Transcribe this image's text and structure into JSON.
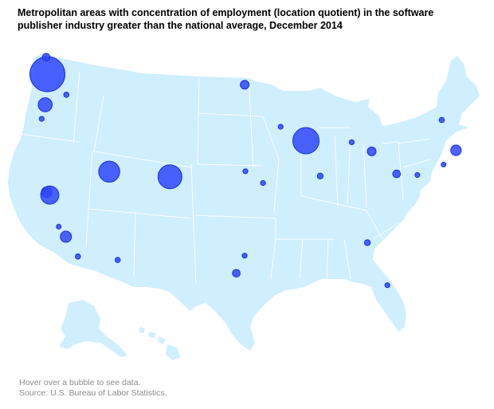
{
  "title": "Metropolitan areas with concentration of employment (location quotient) in the software publisher industry greater than the national average, December 2014",
  "footer": {
    "hint": "Hover over a bubble to see data.",
    "source": "Source: U.S. Bureau of Labor Statistics."
  },
  "colors": {
    "land": "#cfeefe",
    "bubble": "#2f47ff",
    "bubble_stroke": "#1a2fd8",
    "footer_text": "#8a8a8a"
  },
  "map": {
    "region": "United States (lower 48)",
    "bubbles": [
      {
        "id": "seattle",
        "lon": -122.3,
        "lat": 47.6,
        "relative_size": 1.0
      },
      {
        "id": "bellingham",
        "lon": -122.5,
        "lat": 48.75,
        "relative_size": 0.22
      },
      {
        "id": "portland",
        "lon": -122.68,
        "lat": 45.52,
        "relative_size": 0.4
      },
      {
        "id": "kennewick",
        "lon": -119.1,
        "lat": 46.2,
        "relative_size": 0.15
      },
      {
        "id": "corvallis",
        "lon": -123.26,
        "lat": 44.56,
        "relative_size": 0.14
      },
      {
        "id": "san-francisco",
        "lon": -122.42,
        "lat": 37.77,
        "relative_size": 0.3
      },
      {
        "id": "san-jose",
        "lon": -121.89,
        "lat": 37.34,
        "relative_size": 0.52
      },
      {
        "id": "santa-maria",
        "lon": -120.4,
        "lat": 34.95,
        "relative_size": 0.13
      },
      {
        "id": "oxnard",
        "lon": -119.18,
        "lat": 34.2,
        "relative_size": 0.32
      },
      {
        "id": "san-diego",
        "lon": -117.16,
        "lat": 32.72,
        "relative_size": 0.15
      },
      {
        "id": "tucson",
        "lon": -110.97,
        "lat": 32.22,
        "relative_size": 0.15
      },
      {
        "id": "salt-lake-city",
        "lon": -111.89,
        "lat": 40.76,
        "relative_size": 0.6
      },
      {
        "id": "boulder",
        "lon": -105.27,
        "lat": 40.02,
        "relative_size": 0.68
      },
      {
        "id": "fargo",
        "lon": -96.79,
        "lat": 46.88,
        "relative_size": 0.25
      },
      {
        "id": "rochester-mn",
        "lon": -92.46,
        "lat": 44.02,
        "relative_size": 0.14
      },
      {
        "id": "lincoln",
        "lon": -96.7,
        "lat": 40.81,
        "relative_size": 0.14
      },
      {
        "id": "kansas-city",
        "lon": -94.58,
        "lat": 39.1,
        "relative_size": 0.14
      },
      {
        "id": "austin",
        "lon": -97.74,
        "lat": 30.27,
        "relative_size": 0.22
      },
      {
        "id": "dallas",
        "lon": -96.8,
        "lat": 32.78,
        "relative_size": 0.14
      },
      {
        "id": "madison",
        "lon": -89.4,
        "lat": 43.07,
        "relative_size": 0.75
      },
      {
        "id": "champaign",
        "lon": -88.24,
        "lat": 40.12,
        "relative_size": 0.17
      },
      {
        "id": "grand-rapids",
        "lon": -85.67,
        "lat": 42.96,
        "relative_size": 0.14
      },
      {
        "id": "ann-arbor",
        "lon": -83.74,
        "lat": 42.28,
        "relative_size": 0.25
      },
      {
        "id": "pittsburgh",
        "lon": -79.99,
        "lat": 40.44,
        "relative_size": 0.22
      },
      {
        "id": "harrisburg",
        "lon": -76.88,
        "lat": 40.27,
        "relative_size": 0.13
      },
      {
        "id": "burlington",
        "lon": -73.21,
        "lat": 44.48,
        "relative_size": 0.15
      },
      {
        "id": "boston",
        "lon": -71.06,
        "lat": 42.36,
        "relative_size": 0.3
      },
      {
        "id": "new-haven",
        "lon": -72.93,
        "lat": 41.31,
        "relative_size": 0.13
      },
      {
        "id": "atlanta",
        "lon": -84.39,
        "lat": 33.75,
        "relative_size": 0.17
      },
      {
        "id": "orlando",
        "lon": -81.38,
        "lat": 28.54,
        "relative_size": 0.14
      }
    ]
  }
}
